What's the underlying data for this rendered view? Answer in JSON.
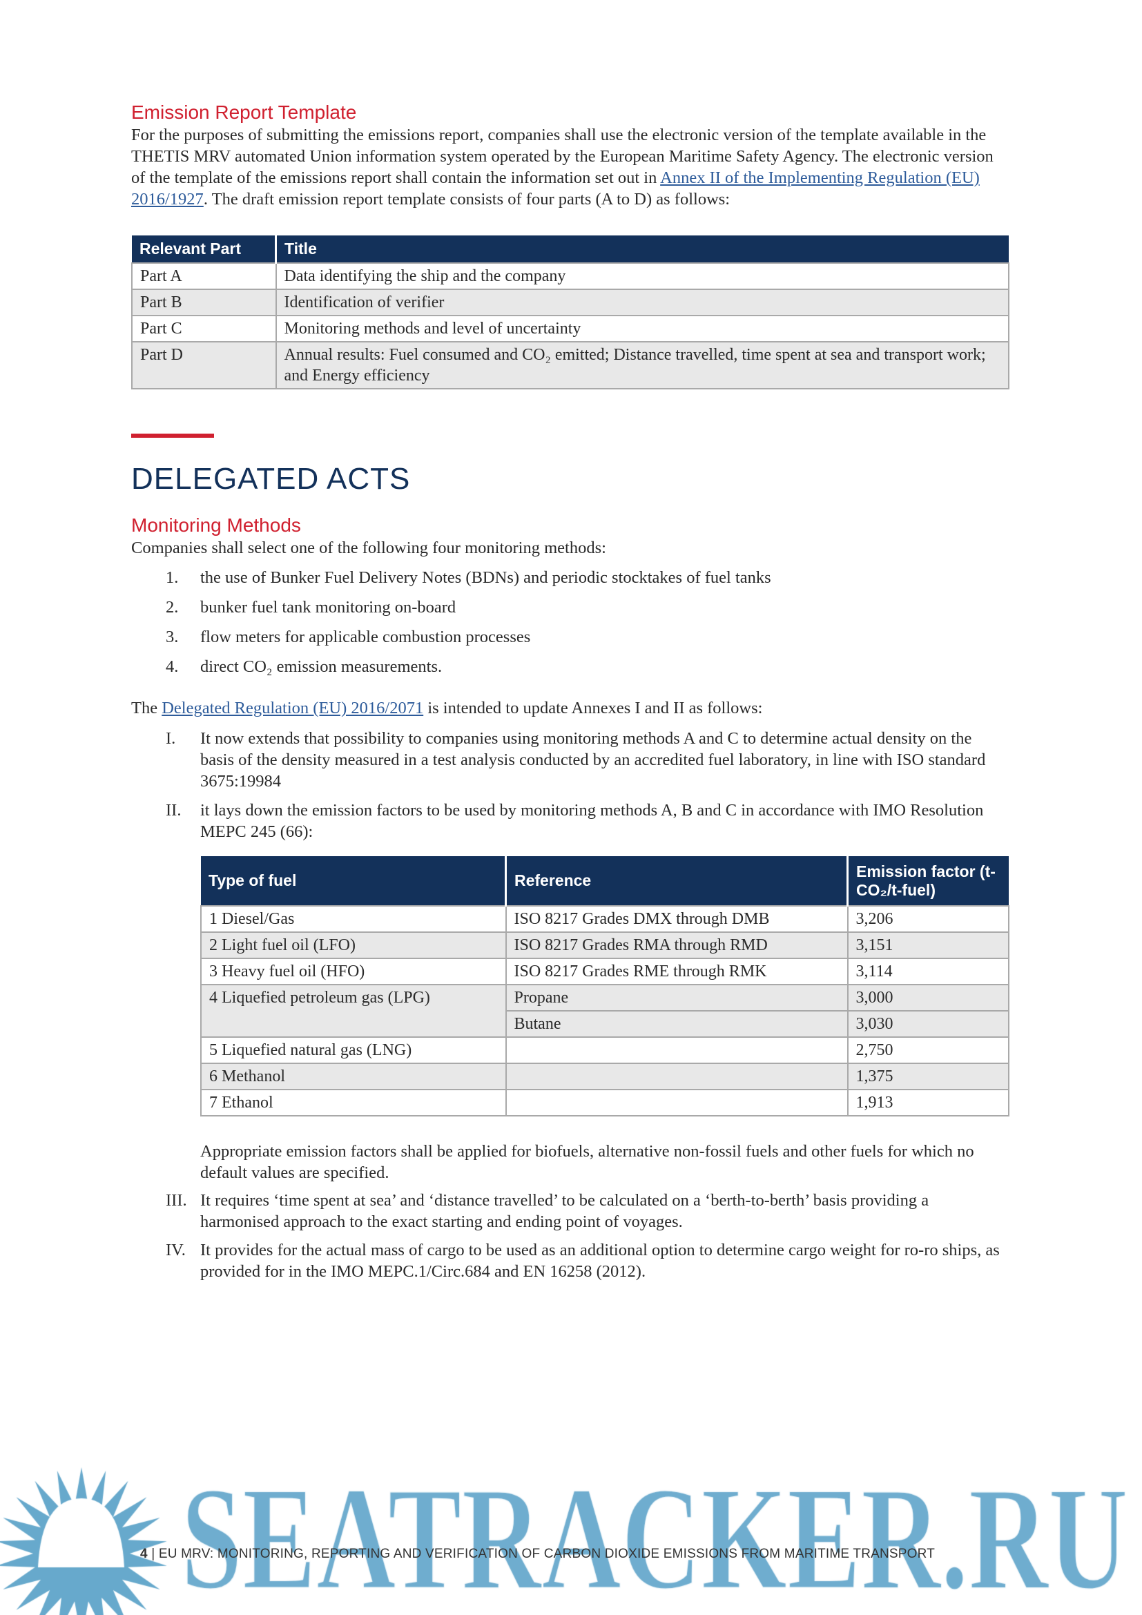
{
  "section1": {
    "heading": "Emission Report Template",
    "para_before": "For the purposes of submitting the emissions report, companies shall use the electronic version of the template available in the THETIS MRV automated Union information system operated by the European Maritime Safety Agency. The electronic version of the template of the emissions report shall contain the information set out in ",
    "link": "Annex II of the Implementing Regulation (EU) 2016/1927",
    "para_after": ". The draft emission report template consists of four parts (A to D) as follows:",
    "table": {
      "headers": [
        "Relevant Part",
        "Title"
      ],
      "rows": [
        [
          "Part A",
          "Data identifying the ship and the company"
        ],
        [
          "Part B",
          "Identification of verifier"
        ],
        [
          "Part C",
          "Monitoring methods and level of uncertainty"
        ],
        [
          "Part D",
          "Annual results: Fuel consumed and CO₂ emitted; Distance travelled, time spent at sea and transport work; and Energy efficiency"
        ]
      ]
    }
  },
  "section2": {
    "title": "DELEGATED ACTS",
    "subheading": "Monitoring Methods",
    "intro": "Companies shall select one of the following four monitoring methods:",
    "methods": [
      {
        "num": "1.",
        "text": "the use of Bunker Fuel Delivery Notes (BDNs) and periodic stocktakes of fuel tanks"
      },
      {
        "num": "2.",
        "text": "bunker fuel tank monitoring on-board"
      },
      {
        "num": "3.",
        "text": "flow meters for applicable combustion processes"
      },
      {
        "num": "4.",
        "text": "direct CO₂ emission measurements."
      }
    ],
    "delegated_before": "The ",
    "delegated_link": "Delegated Regulation (EU) 2016/2071",
    "delegated_after": " is intended to update Annexes I and II as follows:",
    "points": [
      {
        "num": "I.",
        "text": "It now extends that possibility to companies using monitoring methods A and C to determine actual density on the basis of the density measured in a test analysis conducted by an accredited fuel laboratory, in line with ISO standard 3675:19984"
      },
      {
        "num": "II.",
        "text": "it lays down the emission factors to be used by monitoring methods A, B and C in accordance with IMO Resolution MEPC 245 (66):"
      },
      {
        "num": "III.",
        "text": "It requires ‘time spent at sea’ and ‘distance travelled’ to be calculated on a ‘berth-to-berth’ basis providing a harmonised approach to the exact starting and ending point of voyages."
      },
      {
        "num": "IV.",
        "text": "It provides for the actual mass of cargo to be used as an additional option to determine cargo weight for ro-ro ships, as provided for in the IMO MEPC.1/Circ.684 and EN 16258 (2012)."
      }
    ],
    "fuel_table": {
      "headers": [
        "Type of fuel",
        "Reference",
        "Emission factor (t-CO₂/t-fuel)"
      ],
      "rows": [
        [
          "1 Diesel/Gas",
          "ISO 8217 Grades DMX through DMB",
          "3,206"
        ],
        [
          "2 Light fuel oil (LFO)",
          "ISO 8217 Grades RMA through RMD",
          "3,151"
        ],
        [
          "3 Heavy fuel oil (HFO)",
          "ISO 8217 Grades RME through RMK",
          "3,114"
        ],
        [
          "4 Liquefied petroleum gas (LPG)",
          "Propane",
          "3,000"
        ],
        [
          "",
          "Butane",
          "3,030"
        ],
        [
          "5 Liquefied natural gas (LNG)",
          "",
          "2,750"
        ],
        [
          "6 Methanol",
          "",
          "1,375"
        ],
        [
          "7 Ethanol",
          "",
          "1,913"
        ]
      ]
    },
    "after_table": "Appropriate emission factors shall be applied for biofuels, alternative non-fossil fuels and other fuels for which no default values are specified."
  },
  "footer": {
    "page": "4",
    "sep": " | ",
    "text": "EU MRV: MONITORING, REPORTING AND VERIFICATION OF CARBON DIOXIDE EMISSIONS FROM MARITIME TRANSPORT"
  },
  "watermark": {
    "text": "SEATRACKER.RU",
    "color": "#67a9cc"
  },
  "colors": {
    "accent_red": "#d0202f",
    "navy": "#13315a",
    "link": "#2d5b9a"
  }
}
